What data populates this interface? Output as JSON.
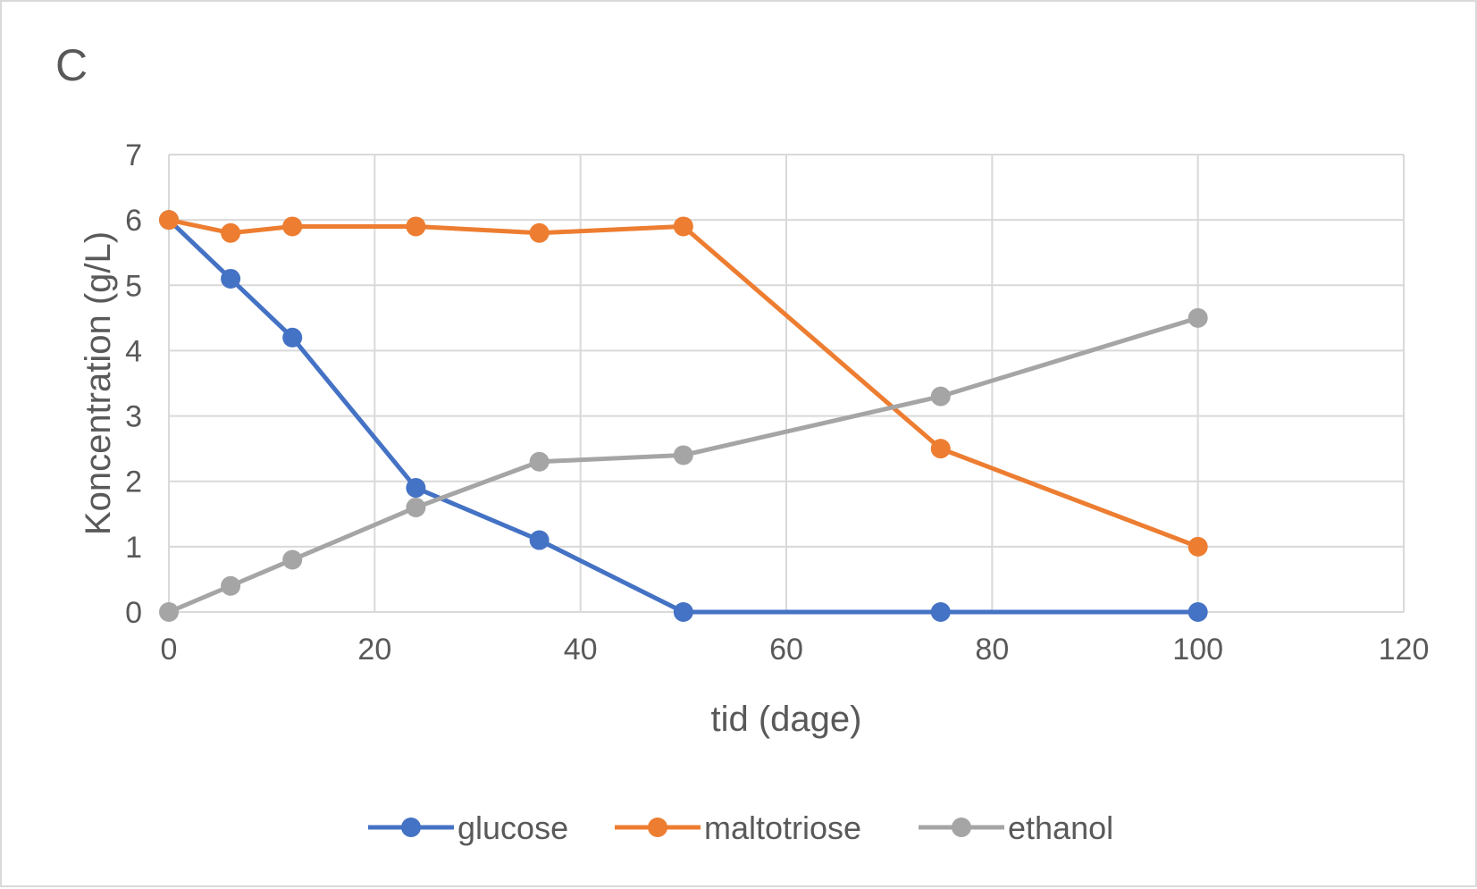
{
  "chart_data": {
    "type": "line",
    "title": "C",
    "xlabel": "tid (dage)",
    "ylabel": "Koncentration (g/L)",
    "xlim": [
      0,
      120
    ],
    "ylim": [
      0,
      7
    ],
    "x_ticks": [
      0,
      20,
      40,
      60,
      80,
      100,
      120
    ],
    "y_ticks": [
      0,
      1,
      2,
      3,
      4,
      5,
      6,
      7
    ],
    "x_tick_labels": [
      "0",
      "20",
      "40",
      "60",
      "80",
      "100",
      "120"
    ],
    "y_tick_labels": [
      "0",
      "1",
      "2",
      "3",
      "4",
      "5",
      "6",
      "7"
    ],
    "grid": true,
    "legend_position": "bottom",
    "x": [
      0,
      6,
      12,
      24,
      36,
      50,
      75,
      100
    ],
    "series": [
      {
        "name": "glucose",
        "color": "#4472c4",
        "x": [
          0,
          6,
          12,
          24,
          36,
          50,
          75,
          100
        ],
        "values": [
          6.0,
          5.1,
          4.2,
          1.9,
          1.1,
          0.0,
          0.0,
          0.0
        ]
      },
      {
        "name": "maltotriose",
        "color": "#ed7d31",
        "x": [
          0,
          6,
          12,
          24,
          36,
          50,
          75,
          100
        ],
        "values": [
          6.0,
          5.8,
          5.9,
          5.9,
          5.8,
          5.9,
          2.5,
          1.0
        ]
      },
      {
        "name": "ethanol",
        "color": "#a5a5a5",
        "x": [
          0,
          6,
          12,
          24,
          36,
          50,
          75,
          100
        ],
        "values": [
          0.0,
          0.4,
          0.8,
          1.6,
          2.3,
          2.4,
          3.3,
          4.5
        ]
      }
    ]
  }
}
